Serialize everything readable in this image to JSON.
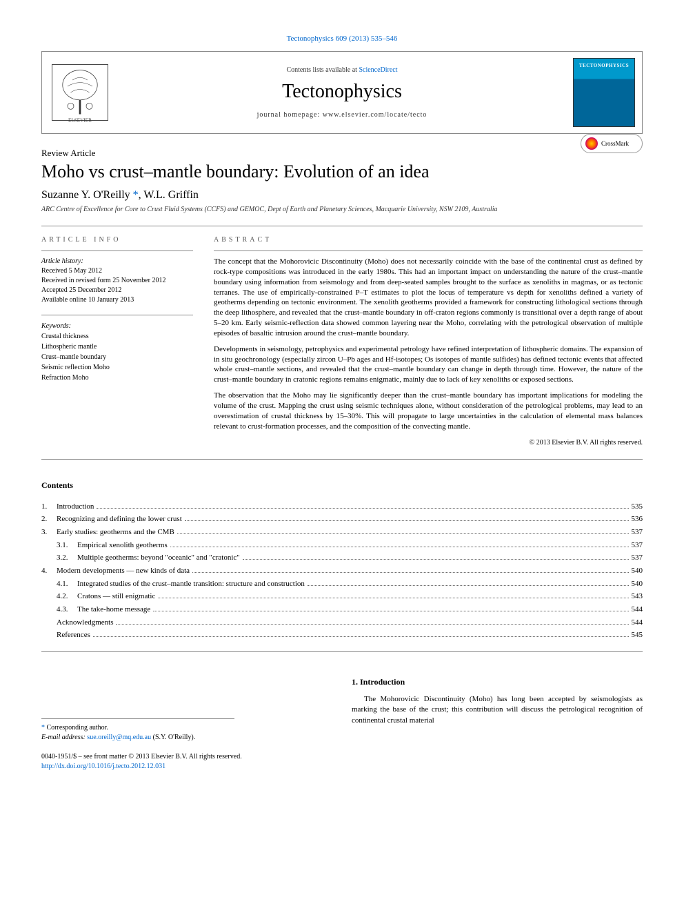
{
  "top_link": "Tectonophysics 609 (2013) 535–546",
  "header": {
    "contents_prefix": "Contents lists available at ",
    "contents_link": "ScienceDirect",
    "journal_name": "Tectonophysics",
    "homepage_prefix": "journal homepage: ",
    "homepage_url": "www.elsevier.com/locate/tecto",
    "cover_label": "TECTONOPHYSICS"
  },
  "article": {
    "type": "Review Article",
    "title": "Moho vs crust–mantle boundary: Evolution of an idea",
    "crossmark_label": "CrossMark",
    "authors": "Suzanne Y. O'Reilly ",
    "author_star": "*",
    "authors_rest": ", W.L. Griffin",
    "affiliation": "ARC Centre of Excellence for Core to Crust Fluid Systems (CCFS) and GEMOC, Dept of Earth and Planetary Sciences, Macquarie University, NSW 2109, Australia"
  },
  "info": {
    "section_label": "ARTICLE INFO",
    "history_label": "Article history:",
    "history": [
      "Received 5 May 2012",
      "Received in revised form 25 November 2012",
      "Accepted 25 December 2012",
      "Available online 10 January 2013"
    ],
    "keywords_label": "Keywords:",
    "keywords": [
      "Crustal thickness",
      "Lithospheric mantle",
      "Crust–mantle boundary",
      "Seismic reflection Moho",
      "Refraction Moho"
    ]
  },
  "abstract": {
    "section_label": "ABSTRACT",
    "paragraphs": [
      "The concept that the Mohorovicic Discontinuity (Moho) does not necessarily coincide with the base of the continental crust as defined by rock-type compositions was introduced in the early 1980s. This had an important impact on understanding the nature of the crust–mantle boundary using information from seismology and from deep-seated samples brought to the surface as xenoliths in magmas, or as tectonic terranes. The use of empirically-constrained P–T estimates to plot the locus of temperature vs depth for xenoliths defined a variety of geotherms depending on tectonic environment. The xenolith geotherms provided a framework for constructing lithological sections through the deep lithosphere, and revealed that the crust–mantle boundary in off-craton regions commonly is transitional over a depth range of about 5–20 km. Early seismic-reflection data showed common layering near the Moho, correlating with the petrological observation of multiple episodes of basaltic intrusion around the crust–mantle boundary.",
      "Developments in seismology, petrophysics and experimental petrology have refined interpretation of lithospheric domains. The expansion of in situ geochronology (especially zircon U–Pb ages and Hf-isotopes; Os isotopes of mantle sulfides) has defined tectonic events that affected whole crust–mantle sections, and revealed that the crust–mantle boundary can change in depth through time. However, the nature of the crust–mantle boundary in cratonic regions remains enigmatic, mainly due to lack of key xenoliths or exposed sections.",
      "The observation that the Moho may lie significantly deeper than the crust–mantle boundary has important implications for modeling the volume of the crust. Mapping the crust using seismic techniques alone, without consideration of the petrological problems, may lead to an overestimation of crustal thickness by 15–30%. This will propagate to large uncertainties in the calculation of elemental mass balances relevant to crust-formation processes, and the composition of the convecting mantle."
    ],
    "copyright": "© 2013 Elsevier B.V. All rights reserved."
  },
  "contents": {
    "heading": "Contents",
    "items": [
      {
        "num": "1.",
        "indent": 0,
        "title": "Introduction",
        "page": "535"
      },
      {
        "num": "2.",
        "indent": 0,
        "title": "Recognizing and defining the lower crust",
        "page": "536"
      },
      {
        "num": "3.",
        "indent": 0,
        "title": "Early studies: geotherms and the CMB",
        "page": "537"
      },
      {
        "num": "3.1.",
        "indent": 1,
        "title": "Empirical xenolith geotherms",
        "page": "537"
      },
      {
        "num": "3.2.",
        "indent": 1,
        "title": "Multiple geotherms: beyond \"oceanic\" and \"cratonic\"",
        "page": "537"
      },
      {
        "num": "4.",
        "indent": 0,
        "title": "Modern developments — new kinds of data",
        "page": "540"
      },
      {
        "num": "4.1.",
        "indent": 1,
        "title": "Integrated studies of the crust–mantle transition: structure and construction",
        "page": "540"
      },
      {
        "num": "4.2.",
        "indent": 1,
        "title": "Cratons — still enigmatic",
        "page": "543"
      },
      {
        "num": "4.3.",
        "indent": 1,
        "title": "The take-home message",
        "page": "544"
      },
      {
        "num": "",
        "indent": 0,
        "title": "Acknowledgments",
        "page": "544"
      },
      {
        "num": "",
        "indent": 0,
        "title": "References",
        "page": "545"
      }
    ]
  },
  "intro": {
    "heading": "1. Introduction",
    "text": "The Mohorovicic Discontinuity (Moho) has long been accepted by seismologists as marking the base of the crust; this contribution will discuss the petrological recognition of continental crustal material"
  },
  "footnote": {
    "star": "*",
    "corresponding": " Corresponding author.",
    "email_label": "E-mail address: ",
    "email": "sue.oreilly@mq.edu.au",
    "email_suffix": " (S.Y. O'Reilly)."
  },
  "footer": {
    "line1": "0040-1951/$ – see front matter © 2013 Elsevier B.V. All rights reserved.",
    "doi": "http://dx.doi.org/10.1016/j.tecto.2012.12.031"
  },
  "colors": {
    "link": "#0066cc",
    "text": "#000000",
    "rule": "#888888"
  }
}
